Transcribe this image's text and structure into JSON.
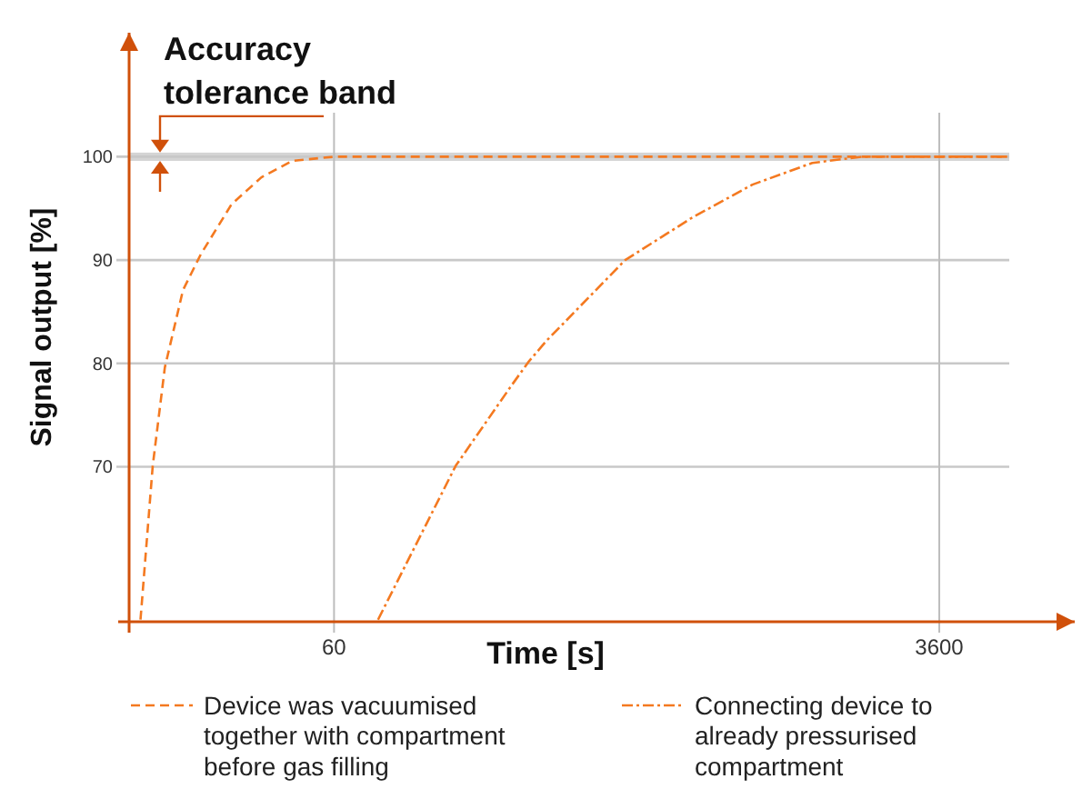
{
  "chart_data": {
    "type": "line",
    "xlabel": "Time [s]",
    "ylabel": "Signal output [%]",
    "log": "x",
    "xlim": [
      15,
      9000
    ],
    "xticks": [
      60,
      3600
    ],
    "ylim": [
      55,
      112
    ],
    "yticks": [
      70,
      80,
      90,
      100
    ],
    "grid": true,
    "legend": "bottom",
    "series": [
      {
        "name": "Device was vacuumised together with compartment before gas filling",
        "color": "#f47920",
        "line_style": "dashed",
        "x": [
          16.2,
          17.6,
          19.1,
          21.6,
          24.4,
          30,
          36.7,
          45.2,
          60,
          5700
        ],
        "values": [
          55.2,
          70.1,
          79.6,
          87.1,
          90.6,
          95.4,
          98.0,
          99.6,
          100,
          100
        ]
      },
      {
        "name": "Connecting device to already pressurised compartment",
        "color": "#f47920",
        "line_style": "dashdot",
        "x": [
          80.8,
          136.7,
          197.7,
          223,
          252.7,
          430,
          676,
          1017,
          1525,
          2128,
          5700
        ],
        "values": [
          55.2,
          70.1,
          77.7,
          80.1,
          82.2,
          90.0,
          94.1,
          97.3,
          99.4,
          100,
          100
        ]
      }
    ],
    "bands": [
      {
        "axis": "y",
        "from": 99.6,
        "to": 100.4,
        "label": "Accuracy tolerance band",
        "color": "#d4d4d4"
      }
    ]
  }
}
